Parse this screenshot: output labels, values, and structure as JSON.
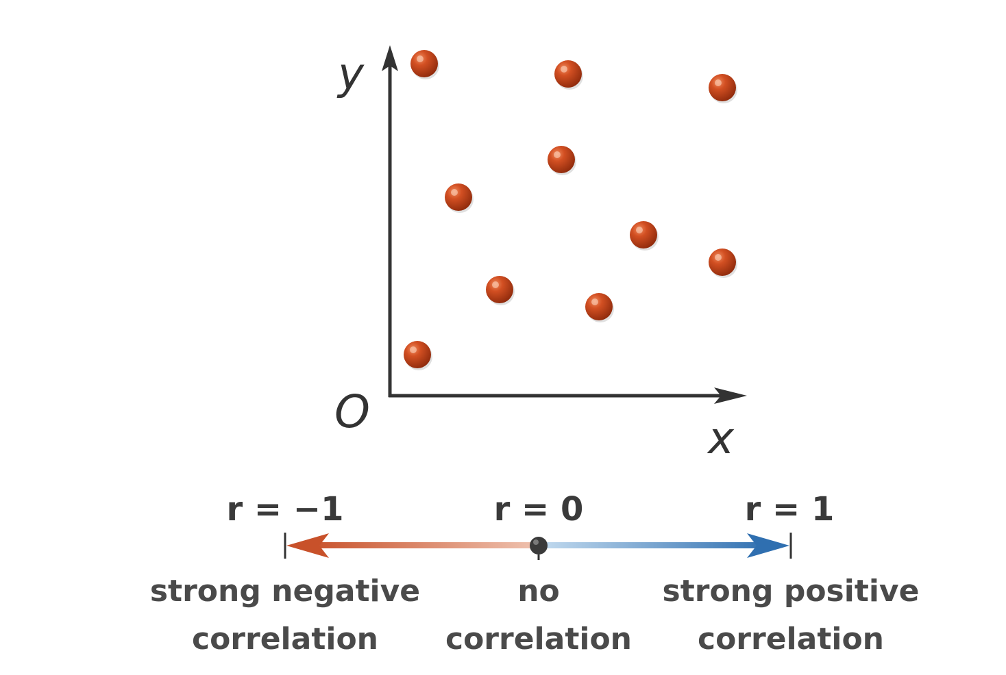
{
  "chart_data": {
    "type": "scatter",
    "xlabel": "x",
    "ylabel": "y",
    "origin_label": "O",
    "points": [
      {
        "x": 1.0,
        "y": 9.7
      },
      {
        "x": 5.2,
        "y": 9.4
      },
      {
        "x": 9.7,
        "y": 9.0
      },
      {
        "x": 5.0,
        "y": 6.9
      },
      {
        "x": 2.0,
        "y": 5.8
      },
      {
        "x": 7.4,
        "y": 4.7
      },
      {
        "x": 9.7,
        "y": 3.9
      },
      {
        "x": 3.2,
        "y": 3.1
      },
      {
        "x": 6.1,
        "y": 2.6
      },
      {
        "x": 0.8,
        "y": 1.2
      }
    ],
    "xlim": [
      0,
      10.5
    ],
    "ylim": [
      0,
      10.5
    ],
    "grid": false
  },
  "scale": {
    "value_min": -1,
    "value_max": 1,
    "ticks": [
      {
        "value": -1,
        "r_label": "r = −1",
        "caption_lines": [
          "strong negative",
          "correlation"
        ]
      },
      {
        "value": 0,
        "r_label": "r = 0",
        "caption_lines": [
          "no",
          "correlation"
        ]
      },
      {
        "value": 1,
        "r_label": "r = 1",
        "caption_lines": [
          "strong positive",
          "correlation"
        ]
      }
    ]
  },
  "colors": {
    "point": "#c0401a",
    "axis": "#333333",
    "negative": "#c8512a",
    "positive": "#2f6fb0",
    "neutral_dot": "#333333"
  }
}
